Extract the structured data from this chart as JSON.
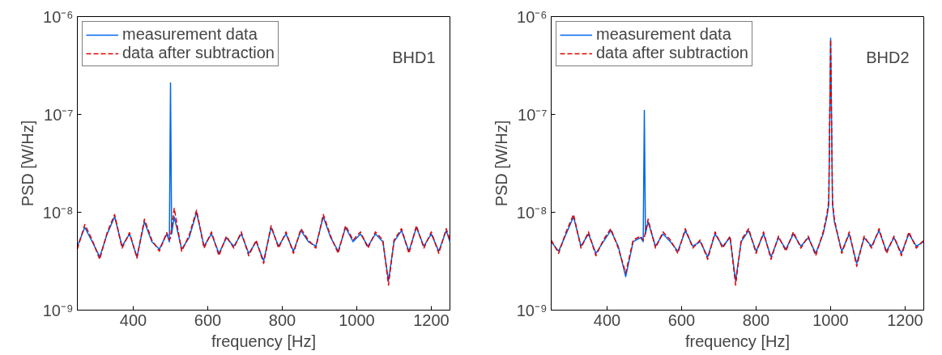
{
  "chart_data": [
    {
      "type": "line",
      "xlabel": "frequency [Hz]",
      "ylabel": "PSD [W/Hz]",
      "annotations": [
        "BHD1"
      ],
      "log": "y",
      "legend": "top left",
      "xlim": [
        250,
        1250
      ],
      "ylim": [
        1e-09,
        1e-06
      ],
      "xticks": [
        400,
        600,
        800,
        1000,
        1200
      ],
      "yticks": [
        {
          "value": 1e-09,
          "label": "10⁻⁹"
        },
        {
          "value": 1e-08,
          "label": "10⁻⁸"
        },
        {
          "value": 1e-07,
          "label": "10⁻⁷"
        },
        {
          "value": 1e-06,
          "label": "10⁻⁶"
        }
      ],
      "series": [
        {
          "name": "measurement data",
          "color": "#0066ee",
          "line_style": "solid",
          "x": [
            250,
            270,
            290,
            310,
            330,
            350,
            370,
            390,
            410,
            430,
            450,
            470,
            490,
            497,
            500,
            503,
            510,
            530,
            550,
            570,
            590,
            610,
            630,
            650,
            670,
            690,
            710,
            730,
            750,
            770,
            790,
            810,
            830,
            850,
            870,
            890,
            910,
            930,
            950,
            970,
            990,
            1010,
            1030,
            1050,
            1070,
            1085,
            1100,
            1120,
            1140,
            1160,
            1180,
            1200,
            1220,
            1240,
            1250
          ],
          "values": [
            4.5e-09,
            7e-09,
            5e-09,
            3.5e-09,
            6e-09,
            9e-09,
            4.5e-09,
            6e-09,
            3.5e-09,
            8e-09,
            5e-09,
            4.2e-09,
            6e-09,
            5e-09,
            2.1e-07,
            6e-09,
            9e-09,
            4.2e-09,
            5.5e-09,
            1e-08,
            4.5e-09,
            6e-09,
            3.8e-09,
            5.5e-09,
            4.5e-09,
            6e-09,
            3.8e-09,
            5e-09,
            3.2e-09,
            7e-09,
            4.5e-09,
            6e-09,
            4e-09,
            6.5e-09,
            5e-09,
            4.5e-09,
            9e-09,
            5.5e-09,
            4e-09,
            7e-09,
            5e-09,
            6e-09,
            4.5e-09,
            6e-09,
            5e-09,
            2e-09,
            5e-09,
            6.5e-09,
            4e-09,
            7e-09,
            4.5e-09,
            6e-09,
            4e-09,
            6.5e-09,
            5e-09
          ]
        },
        {
          "name": "data after subtraction",
          "color": "#dd0000",
          "line_style": "dashed",
          "x": [
            250,
            270,
            290,
            310,
            330,
            350,
            370,
            390,
            410,
            430,
            450,
            470,
            490,
            497,
            500,
            503,
            510,
            530,
            550,
            570,
            590,
            610,
            630,
            650,
            670,
            690,
            710,
            730,
            750,
            770,
            790,
            810,
            830,
            850,
            870,
            890,
            910,
            930,
            950,
            970,
            990,
            1010,
            1030,
            1050,
            1070,
            1085,
            1100,
            1120,
            1140,
            1160,
            1180,
            1200,
            1220,
            1240,
            1250
          ],
          "values": [
            4.2e-09,
            7.5e-09,
            5.2e-09,
            3.3e-09,
            6.2e-09,
            9.5e-09,
            4.3e-09,
            6.2e-09,
            3.4e-09,
            8.5e-09,
            5.2e-09,
            4e-09,
            6.2e-09,
            5.2e-09,
            5.5e-09,
            7e-09,
            1.1e-08,
            4e-09,
            5.8e-09,
            1.05e-08,
            4.3e-09,
            6.3e-09,
            3.6e-09,
            5.7e-09,
            4.3e-09,
            6.3e-09,
            3.6e-09,
            5.2e-09,
            3e-09,
            7.3e-09,
            4.3e-09,
            6.3e-09,
            3.8e-09,
            6.8e-09,
            5.2e-09,
            4.3e-09,
            9.5e-09,
            5.7e-09,
            3.8e-09,
            7.3e-09,
            5.2e-09,
            6.3e-09,
            4.3e-09,
            6.3e-09,
            5.2e-09,
            1.8e-09,
            5.2e-09,
            6.8e-09,
            3.8e-09,
            7.3e-09,
            4.3e-09,
            6.3e-09,
            3.8e-09,
            6.8e-09,
            5.2e-09
          ]
        }
      ]
    },
    {
      "type": "line",
      "xlabel": "frequency [Hz]",
      "ylabel": "PSD [W/Hz]",
      "annotations": [
        "BHD2"
      ],
      "log": "y",
      "legend": "top left",
      "xlim": [
        250,
        1250
      ],
      "ylim": [
        1e-09,
        1e-06
      ],
      "xticks": [
        400,
        600,
        800,
        1000,
        1200
      ],
      "yticks": [
        {
          "value": 1e-09,
          "label": "10⁻⁹"
        },
        {
          "value": 1e-08,
          "label": "10⁻⁸"
        },
        {
          "value": 1e-07,
          "label": "10⁻⁷"
        },
        {
          "value": 1e-06,
          "label": "10⁻⁶"
        }
      ],
      "series": [
        {
          "name": "measurement data",
          "color": "#0066ee",
          "line_style": "solid",
          "x": [
            250,
            270,
            290,
            310,
            330,
            350,
            370,
            390,
            410,
            430,
            450,
            470,
            490,
            497,
            500,
            503,
            510,
            530,
            550,
            570,
            590,
            610,
            630,
            650,
            670,
            690,
            710,
            730,
            745,
            760,
            780,
            800,
            820,
            840,
            860,
            880,
            900,
            920,
            940,
            960,
            980,
            990,
            995,
            1000,
            1005,
            1010,
            1030,
            1050,
            1070,
            1090,
            1110,
            1130,
            1150,
            1170,
            1190,
            1210,
            1230,
            1250
          ],
          "values": [
            5e-09,
            4e-09,
            6e-09,
            9e-09,
            4.5e-09,
            6e-09,
            3.8e-09,
            5e-09,
            6.5e-09,
            4.5e-09,
            2.2e-09,
            5e-09,
            5.5e-09,
            5e-09,
            1.1e-07,
            6e-09,
            8e-09,
            4.5e-09,
            6e-09,
            5e-09,
            4e-09,
            6.5e-09,
            4.5e-09,
            5e-09,
            3.5e-09,
            6e-09,
            4.5e-09,
            5.5e-09,
            2e-09,
            5e-09,
            6.5e-09,
            4e-09,
            6e-09,
            3.5e-09,
            5.5e-09,
            4.2e-09,
            6e-09,
            4.5e-09,
            5.5e-09,
            3.8e-09,
            6e-09,
            9e-09,
            1.2e-08,
            6e-07,
            1.2e-08,
            8e-09,
            4e-09,
            6e-09,
            3e-09,
            5.5e-09,
            4.5e-09,
            6.5e-09,
            4e-09,
            5.5e-09,
            3.8e-09,
            6e-09,
            4.5e-09,
            5e-09
          ]
        },
        {
          "name": "data after subtraction",
          "color": "#dd0000",
          "line_style": "dashed",
          "x": [
            250,
            270,
            290,
            310,
            330,
            350,
            370,
            390,
            410,
            430,
            450,
            470,
            490,
            497,
            500,
            503,
            510,
            530,
            550,
            570,
            590,
            610,
            630,
            650,
            670,
            690,
            710,
            730,
            745,
            760,
            780,
            800,
            820,
            840,
            860,
            880,
            900,
            920,
            940,
            960,
            980,
            990,
            995,
            1000,
            1005,
            1010,
            1030,
            1050,
            1070,
            1090,
            1110,
            1130,
            1150,
            1170,
            1190,
            1210,
            1230,
            1250
          ],
          "values": [
            5.2e-09,
            3.8e-09,
            6.3e-09,
            9.5e-09,
            4.3e-09,
            6.3e-09,
            3.6e-09,
            5.2e-09,
            6.8e-09,
            4.3e-09,
            2.4e-09,
            5.2e-09,
            5.7e-09,
            5.2e-09,
            5.5e-09,
            6.3e-09,
            8.5e-09,
            4.3e-09,
            6.3e-09,
            5.2e-09,
            3.8e-09,
            6.8e-09,
            4.3e-09,
            5.2e-09,
            3.3e-09,
            6.3e-09,
            4.3e-09,
            5.7e-09,
            1.8e-09,
            5.2e-09,
            6.8e-09,
            3.8e-09,
            6.3e-09,
            3.3e-09,
            5.7e-09,
            4e-09,
            6.3e-09,
            4.3e-09,
            5.7e-09,
            3.6e-09,
            6.3e-09,
            9.5e-09,
            1.3e-08,
            5.8e-07,
            1.3e-08,
            8.5e-09,
            3.8e-09,
            6.3e-09,
            2.8e-09,
            5.7e-09,
            4.3e-09,
            6.8e-09,
            3.8e-09,
            5.7e-09,
            3.6e-09,
            6.3e-09,
            4.3e-09,
            5.2e-09
          ]
        }
      ]
    }
  ]
}
